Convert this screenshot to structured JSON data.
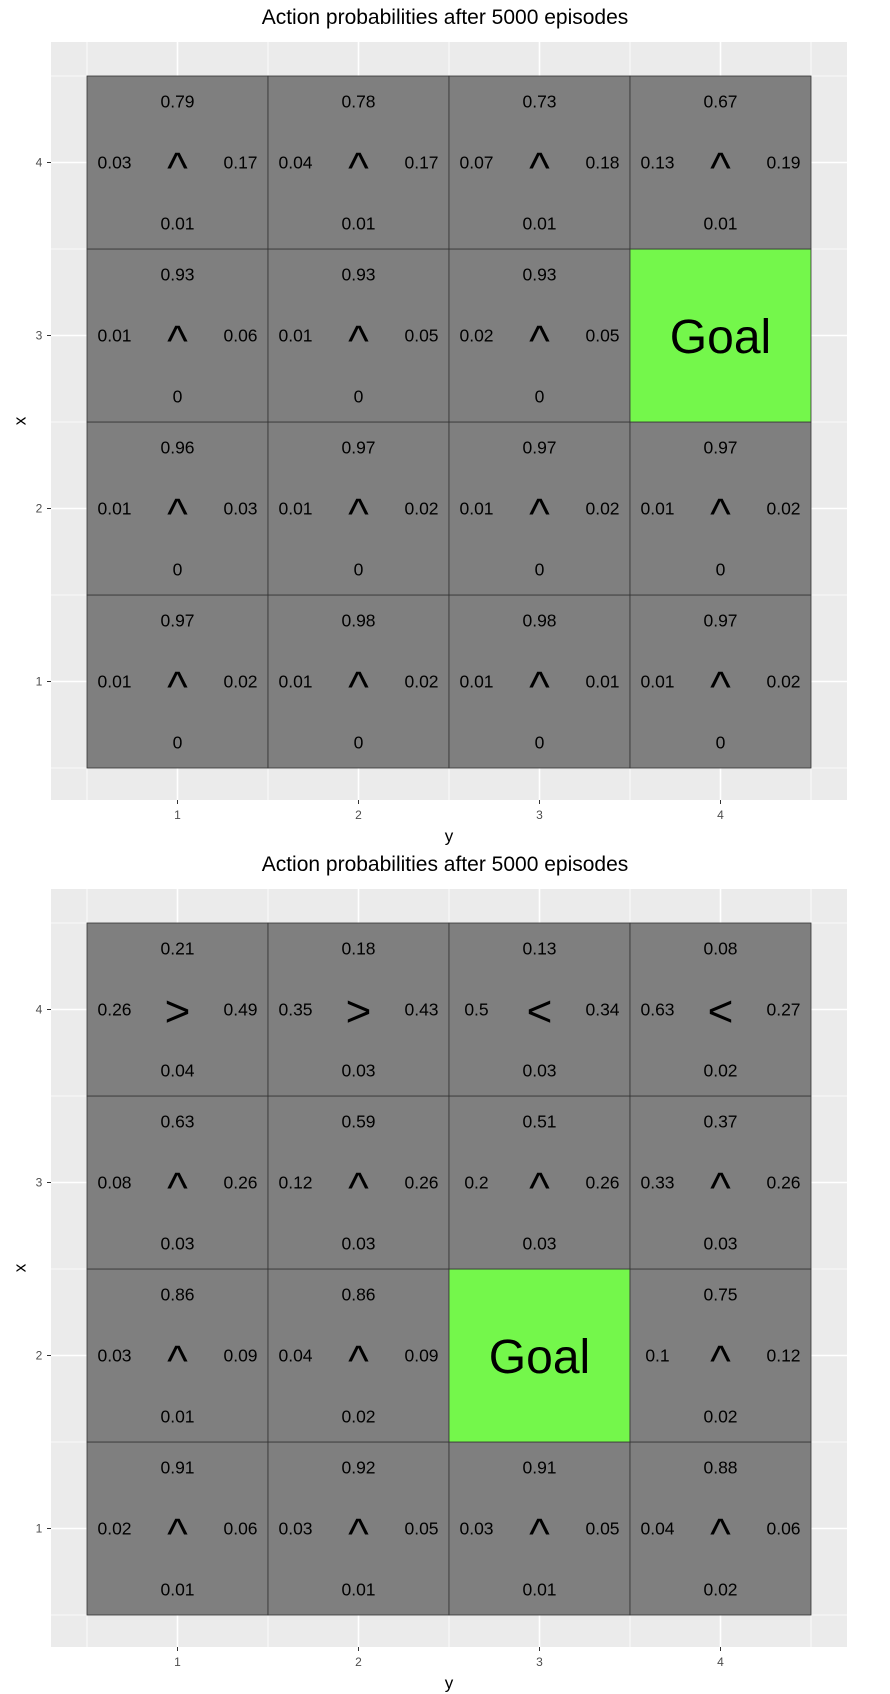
{
  "colors": {
    "panel_bg": "#ebebeb",
    "grid_line": "#ffffff",
    "cell": "#7f7f7f",
    "goal": "#74f74b",
    "cell_border": "#333333"
  },
  "chart_data": [
    {
      "type": "heatmap",
      "title": "Action probabilities after  5000  episodes",
      "xlabel": "y",
      "ylabel": "x",
      "x_ticks": [
        "1",
        "2",
        "3",
        "4"
      ],
      "y_ticks": [
        "1",
        "2",
        "3",
        "4"
      ],
      "xlim": [
        0.5,
        4.5
      ],
      "ylim": [
        0.5,
        4.5
      ],
      "grid": true,
      "goal": {
        "x": 3,
        "y": 4,
        "label": "Goal"
      },
      "cells": [
        {
          "x": 4,
          "y": 1,
          "up": "0.79",
          "left": "0.03",
          "right": "0.17",
          "down": "0.01",
          "arrow": "^"
        },
        {
          "x": 4,
          "y": 2,
          "up": "0.78",
          "left": "0.04",
          "right": "0.17",
          "down": "0.01",
          "arrow": "^"
        },
        {
          "x": 4,
          "y": 3,
          "up": "0.73",
          "left": "0.07",
          "right": "0.18",
          "down": "0.01",
          "arrow": "^"
        },
        {
          "x": 4,
          "y": 4,
          "up": "0.67",
          "left": "0.13",
          "right": "0.19",
          "down": "0.01",
          "arrow": "^"
        },
        {
          "x": 3,
          "y": 1,
          "up": "0.93",
          "left": "0.01",
          "right": "0.06",
          "down": "0",
          "arrow": "^"
        },
        {
          "x": 3,
          "y": 2,
          "up": "0.93",
          "left": "0.01",
          "right": "0.05",
          "down": "0",
          "arrow": "^"
        },
        {
          "x": 3,
          "y": 3,
          "up": "0.93",
          "left": "0.02",
          "right": "0.05",
          "down": "0",
          "arrow": "^"
        },
        {
          "x": 2,
          "y": 1,
          "up": "0.96",
          "left": "0.01",
          "right": "0.03",
          "down": "0",
          "arrow": "^"
        },
        {
          "x": 2,
          "y": 2,
          "up": "0.97",
          "left": "0.01",
          "right": "0.02",
          "down": "0",
          "arrow": "^"
        },
        {
          "x": 2,
          "y": 3,
          "up": "0.97",
          "left": "0.01",
          "right": "0.02",
          "down": "0",
          "arrow": "^"
        },
        {
          "x": 2,
          "y": 4,
          "up": "0.97",
          "left": "0.01",
          "right": "0.02",
          "down": "0",
          "arrow": "^"
        },
        {
          "x": 1,
          "y": 1,
          "up": "0.97",
          "left": "0.01",
          "right": "0.02",
          "down": "0",
          "arrow": "^"
        },
        {
          "x": 1,
          "y": 2,
          "up": "0.98",
          "left": "0.01",
          "right": "0.02",
          "down": "0",
          "arrow": "^"
        },
        {
          "x": 1,
          "y": 3,
          "up": "0.98",
          "left": "0.01",
          "right": "0.01",
          "down": "0",
          "arrow": "^"
        },
        {
          "x": 1,
          "y": 4,
          "up": "0.97",
          "left": "0.01",
          "right": "0.02",
          "down": "0",
          "arrow": "^"
        }
      ]
    },
    {
      "type": "heatmap",
      "title": "Action probabilities after  5000  episodes",
      "xlabel": "y",
      "ylabel": "x",
      "x_ticks": [
        "1",
        "2",
        "3",
        "4"
      ],
      "y_ticks": [
        "1",
        "2",
        "3",
        "4"
      ],
      "xlim": [
        0.5,
        4.5
      ],
      "ylim": [
        0.5,
        4.5
      ],
      "grid": true,
      "goal": {
        "x": 2,
        "y": 3,
        "label": "Goal"
      },
      "cells": [
        {
          "x": 4,
          "y": 1,
          "up": "0.21",
          "left": "0.26",
          "right": "0.49",
          "down": "0.04",
          "arrow": ">"
        },
        {
          "x": 4,
          "y": 2,
          "up": "0.18",
          "left": "0.35",
          "right": "0.43",
          "down": "0.03",
          "arrow": ">"
        },
        {
          "x": 4,
          "y": 3,
          "up": "0.13",
          "left": "0.5",
          "right": "0.34",
          "down": "0.03",
          "arrow": "<"
        },
        {
          "x": 4,
          "y": 4,
          "up": "0.08",
          "left": "0.63",
          "right": "0.27",
          "down": "0.02",
          "arrow": "<"
        },
        {
          "x": 3,
          "y": 1,
          "up": "0.63",
          "left": "0.08",
          "right": "0.26",
          "down": "0.03",
          "arrow": "^"
        },
        {
          "x": 3,
          "y": 2,
          "up": "0.59",
          "left": "0.12",
          "right": "0.26",
          "down": "0.03",
          "arrow": "^"
        },
        {
          "x": 3,
          "y": 3,
          "up": "0.51",
          "left": "0.2",
          "right": "0.26",
          "down": "0.03",
          "arrow": "^"
        },
        {
          "x": 3,
          "y": 4,
          "up": "0.37",
          "left": "0.33",
          "right": "0.26",
          "down": "0.03",
          "arrow": "^"
        },
        {
          "x": 2,
          "y": 1,
          "up": "0.86",
          "left": "0.03",
          "right": "0.09",
          "down": "0.01",
          "arrow": "^"
        },
        {
          "x": 2,
          "y": 2,
          "up": "0.86",
          "left": "0.04",
          "right": "0.09",
          "down": "0.02",
          "arrow": "^"
        },
        {
          "x": 2,
          "y": 4,
          "up": "0.75",
          "left": "0.1",
          "right": "0.12",
          "down": "0.02",
          "arrow": "^"
        },
        {
          "x": 1,
          "y": 1,
          "up": "0.91",
          "left": "0.02",
          "right": "0.06",
          "down": "0.01",
          "arrow": "^"
        },
        {
          "x": 1,
          "y": 2,
          "up": "0.92",
          "left": "0.03",
          "right": "0.05",
          "down": "0.01",
          "arrow": "^"
        },
        {
          "x": 1,
          "y": 3,
          "up": "0.91",
          "left": "0.03",
          "right": "0.05",
          "down": "0.01",
          "arrow": "^"
        },
        {
          "x": 1,
          "y": 4,
          "up": "0.88",
          "left": "0.04",
          "right": "0.06",
          "down": "0.02",
          "arrow": "^"
        }
      ]
    }
  ]
}
